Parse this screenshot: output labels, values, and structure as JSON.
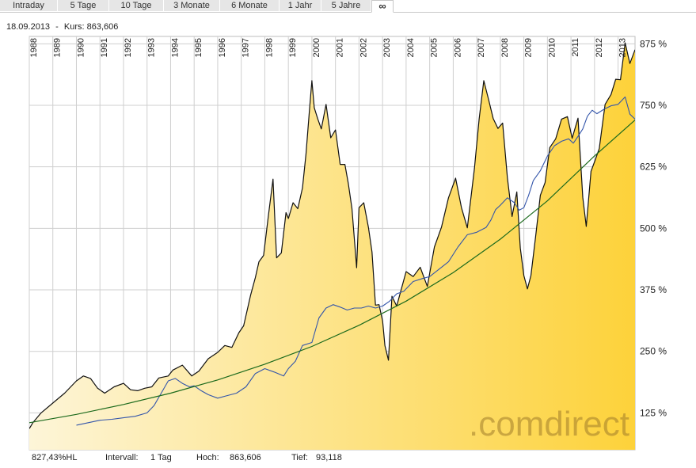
{
  "tabs": [
    {
      "label": "Intraday",
      "active": false
    },
    {
      "label": "5 Tage",
      "active": false
    },
    {
      "label": "10 Tage",
      "active": false
    },
    {
      "label": "3 Monate",
      "active": false
    },
    {
      "label": "6 Monate",
      "active": false
    },
    {
      "label": "1 Jahr",
      "active": false
    },
    {
      "label": "5 Jahre",
      "active": false
    },
    {
      "label": "∞",
      "active": true
    }
  ],
  "header": {
    "date": "18.09.2013",
    "separator": "-",
    "price_label": "Kurs:",
    "price_value": "863,606"
  },
  "footer": {
    "performance": "827,43%HL",
    "interval_label": "Intervall:",
    "interval_value": "1 Tag",
    "high_label": "Hoch:",
    "high_value": "863,606",
    "low_label": "Tief:",
    "low_value": "93,118"
  },
  "watermark": ".comdirect",
  "colors": {
    "main_line": "#111111",
    "benchmark_line": "#3355aa",
    "trend_line": "#1c6a1c",
    "fill_light": "#fdf5d8",
    "fill_dark": "#fdd23a",
    "grid": "#cfcfcf",
    "watermark": "#a07c2a"
  },
  "chart_data": {
    "type": "line",
    "y_unit": "%",
    "y_ticks": [
      "875 %",
      "750 %",
      "625 %",
      "500 %",
      "375 %",
      "250 %",
      "125 %"
    ],
    "y_tick_values": [
      875,
      750,
      625,
      500,
      375,
      250,
      125
    ],
    "ylim": [
      50,
      890
    ],
    "xlim": [
      1988.0,
      2013.72
    ],
    "x_ticks": [
      "1988",
      "1989",
      "1990",
      "1991",
      "1992",
      "1993",
      "1994",
      "1995",
      "1996",
      "1997",
      "1998",
      "1999",
      "2000",
      "2001",
      "2002",
      "2003",
      "2004",
      "2005",
      "2006",
      "2007",
      "2008",
      "2009",
      "2010",
      "2011",
      "2012",
      "2013"
    ],
    "grid": true,
    "series": [
      {
        "style": "area",
        "x": [
          1988.0,
          1988.15,
          1988.5,
          1989.0,
          1989.5,
          1990.0,
          1990.3,
          1990.6,
          1990.9,
          1991.2,
          1991.6,
          1992.0,
          1992.3,
          1992.6,
          1992.9,
          1993.2,
          1993.5,
          1993.9,
          1994.1,
          1994.5,
          1994.9,
          1995.2,
          1995.6,
          1996.0,
          1996.3,
          1996.6,
          1996.9,
          1997.1,
          1997.4,
          1997.6,
          1997.75,
          1997.95,
          1998.15,
          1998.35,
          1998.5,
          1998.7,
          1998.9,
          1999.0,
          1999.2,
          1999.4,
          1999.6,
          1999.75,
          1999.9,
          2000.0,
          2000.1,
          2000.25,
          2000.4,
          2000.6,
          2000.8,
          2001.0,
          2001.2,
          2001.4,
          2001.55,
          2001.7,
          2001.9,
          2002.0,
          2002.2,
          2002.4,
          2002.55,
          2002.7,
          2002.85,
          2003.0,
          2003.1,
          2003.25,
          2003.4,
          2003.6,
          2003.8,
          2004.0,
          2004.3,
          2004.6,
          2004.9,
          2005.2,
          2005.5,
          2005.8,
          2006.1,
          2006.35,
          2006.6,
          2006.9,
          2007.1,
          2007.3,
          2007.5,
          2007.7,
          2007.9,
          2008.1,
          2008.3,
          2008.5,
          2008.7,
          2008.85,
          2009.0,
          2009.15,
          2009.3,
          2009.5,
          2009.7,
          2009.9,
          2010.1,
          2010.35,
          2010.6,
          2010.85,
          2011.05,
          2011.3,
          2011.5,
          2011.65,
          2011.85,
          2012.0,
          2012.2,
          2012.45,
          2012.7,
          2012.9,
          2013.1,
          2013.3,
          2013.5,
          2013.72
        ],
        "values": [
          93,
          105,
          125,
          145,
          165,
          190,
          200,
          195,
          175,
          165,
          178,
          185,
          172,
          170,
          175,
          178,
          196,
          200,
          212,
          222,
          200,
          210,
          235,
          248,
          262,
          258,
          288,
          302,
          365,
          400,
          432,
          445,
          525,
          600,
          440,
          450,
          532,
          520,
          552,
          540,
          582,
          652,
          742,
          800,
          745,
          722,
          702,
          752,
          684,
          700,
          630,
          630,
          590,
          540,
          420,
          542,
          552,
          502,
          452,
          344,
          345,
          312,
          262,
          232,
          362,
          342,
          377,
          412,
          402,
          421,
          382,
          462,
          502,
          562,
          602,
          542,
          501,
          622,
          722,
          800,
          762,
          723,
          703,
          714,
          603,
          524,
          574,
          460,
          404,
          377,
          404,
          484,
          567,
          593,
          664,
          682,
          722,
          727,
          683,
          724,
          563,
          504,
          616,
          635,
          662,
          752,
          772,
          803,
          802,
          877,
          835,
          863
        ]
      },
      {
        "name": "",
        "style": "line",
        "x": [
          1990.0,
          1990.5,
          1991.0,
          1991.5,
          1992.0,
          1992.5,
          1993.0,
          1993.3,
          1993.6,
          1993.9,
          1994.2,
          1994.5,
          1994.8,
          1995.0,
          1995.3,
          1995.6,
          1996.0,
          1996.4,
          1996.8,
          1997.2,
          1997.6,
          1998.0,
          1998.4,
          1998.8,
          1999.0,
          1999.3,
          1999.6,
          2000.0,
          2000.3,
          2000.6,
          2000.9,
          2001.2,
          2001.5,
          2001.8,
          2002.1,
          2002.4,
          2002.7,
          2003.0,
          2003.3,
          2003.6,
          2003.9,
          2004.3,
          2004.7,
          2005.0,
          2005.4,
          2005.8,
          2006.2,
          2006.6,
          2007.0,
          2007.4,
          2007.6,
          2007.8,
          2008.0,
          2008.3,
          2008.6,
          2008.8,
          2009.0,
          2009.2,
          2009.4,
          2009.7,
          2010.0,
          2010.3,
          2010.6,
          2010.9,
          2011.1,
          2011.3,
          2011.5,
          2011.7,
          2011.9,
          2012.1,
          2012.4,
          2012.7,
          2013.0,
          2013.3,
          2013.5,
          2013.72
        ],
        "values": [
          100,
          105,
          110,
          112,
          115,
          118,
          125,
          140,
          165,
          190,
          195,
          185,
          178,
          180,
          170,
          162,
          155,
          160,
          165,
          178,
          205,
          215,
          208,
          200,
          215,
          230,
          262,
          268,
          318,
          338,
          345,
          340,
          334,
          338,
          338,
          342,
          338,
          342,
          352,
          367,
          372,
          392,
          398,
          402,
          417,
          432,
          462,
          487,
          492,
          502,
          517,
          538,
          547,
          562,
          552,
          537,
          542,
          567,
          597,
          617,
          647,
          668,
          677,
          682,
          673,
          687,
          702,
          728,
          740,
          733,
          742,
          749,
          752,
          767,
          732,
          722
        ]
      },
      {
        "name": "",
        "style": "trend",
        "x": [
          1988.0,
          1990.0,
          1992.0,
          1994.0,
          1996.0,
          1998.0,
          2000.0,
          2002.0,
          2004.0,
          2006.0,
          2008.0,
          2010.0,
          2012.0,
          2013.72
        ],
        "values": [
          105,
          122,
          142,
          165,
          192,
          224,
          260,
          303,
          352,
          410,
          478,
          556,
          647,
          720
        ]
      }
    ]
  }
}
